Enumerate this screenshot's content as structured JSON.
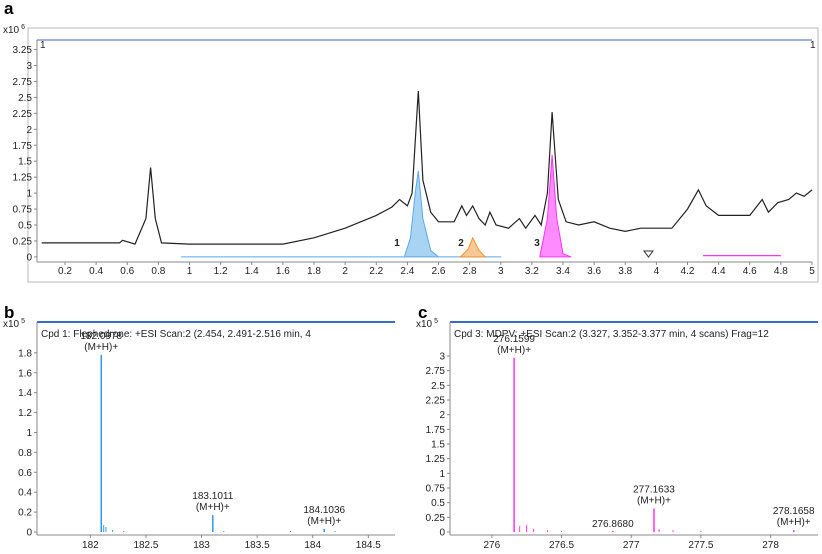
{
  "chart_data": [
    {
      "type": "chromatogram",
      "panel_label": "a",
      "scale_base": "x10",
      "scale_exponent": 6,
      "range_markers": [
        "1",
        "1"
      ],
      "peak_labels": [
        "1",
        "2",
        "3"
      ],
      "xlim": [
        0.02,
        5
      ],
      "ylim": [
        -0.08,
        3.4
      ],
      "xticks": [
        0.2,
        0.4,
        0.6,
        0.8,
        1,
        1.2,
        1.4,
        1.6,
        1.8,
        2,
        2.2,
        2.4,
        2.6,
        2.8,
        3,
        3.2,
        3.4,
        3.6,
        3.8,
        4,
        4.2,
        4.4,
        4.6,
        4.8,
        5
      ],
      "yticks": [
        0,
        0.25,
        0.5,
        0.75,
        1,
        1.25,
        1.5,
        1.75,
        2,
        2.25,
        2.5,
        2.75,
        3,
        3.25
      ],
      "series": [
        {
          "kind": "area",
          "color": "#5aaae6",
          "fill": "#a9d3f2",
          "x": [
            0.95,
            2.38,
            2.42,
            2.45,
            2.47,
            2.5,
            2.55,
            2.6,
            3.0
          ],
          "values": [
            0,
            0,
            0.3,
            1.0,
            1.35,
            0.6,
            0.1,
            0,
            0
          ]
        },
        {
          "kind": "area",
          "color": "#f0962e",
          "fill": "#f8c994",
          "x": [
            2.74,
            2.79,
            2.82,
            2.86,
            2.9
          ],
          "values": [
            0,
            0.12,
            0.3,
            0.1,
            0
          ]
        },
        {
          "kind": "area",
          "color": "#ff33ff",
          "fill": "#ff8cff",
          "x": [
            3.25,
            3.3,
            3.33,
            3.36,
            3.4,
            3.45
          ],
          "values": [
            0,
            0.6,
            1.6,
            0.6,
            0.05,
            0
          ]
        },
        {
          "kind": "line",
          "color": "#ff33ff",
          "x": [
            4.3,
            4.8
          ],
          "values": [
            0.02,
            0.02
          ]
        },
        {
          "kind": "line",
          "color": "#222222",
          "x": [
            0.05,
            0.3,
            0.55,
            0.57,
            0.65,
            0.72,
            0.75,
            0.78,
            0.82,
            1.0,
            1.3,
            1.6,
            1.8,
            2.0,
            2.2,
            2.3,
            2.35,
            2.4,
            2.43,
            2.47,
            2.5,
            2.55,
            2.6,
            2.7,
            2.75,
            2.78,
            2.82,
            2.86,
            2.9,
            2.93,
            2.97,
            3.05,
            3.12,
            3.16,
            3.22,
            3.26,
            3.3,
            3.33,
            3.37,
            3.42,
            3.5,
            3.6,
            3.7,
            3.8,
            3.9,
            4.0,
            4.1,
            4.2,
            4.27,
            4.32,
            4.4,
            4.5,
            4.6,
            4.68,
            4.72,
            4.78,
            4.85,
            4.9,
            4.95,
            5.0
          ],
          "values": [
            0.22,
            0.22,
            0.22,
            0.26,
            0.2,
            0.6,
            1.4,
            0.6,
            0.22,
            0.2,
            0.2,
            0.2,
            0.3,
            0.45,
            0.65,
            0.78,
            0.9,
            0.8,
            1.0,
            2.6,
            1.2,
            0.7,
            0.55,
            0.55,
            0.8,
            0.65,
            0.8,
            0.6,
            0.5,
            0.7,
            0.5,
            0.45,
            0.6,
            0.45,
            0.65,
            0.5,
            1.0,
            2.27,
            0.9,
            0.55,
            0.5,
            0.55,
            0.45,
            0.4,
            0.45,
            0.45,
            0.45,
            0.75,
            1.05,
            0.8,
            0.65,
            0.65,
            0.65,
            0.9,
            0.7,
            0.85,
            0.9,
            1.0,
            0.95,
            1.05
          ]
        }
      ]
    },
    {
      "type": "stem",
      "panel_label": "b",
      "scale_base": "x10",
      "scale_exponent": 5,
      "title": "Cpd 1: Flephedrone: +ESI Scan:2 (2.454, 2.491-2.516 min, 4",
      "xlim": [
        181.52,
        184.74
      ],
      "ylim": [
        0,
        2.11
      ],
      "xticks": [
        182,
        182.5,
        183,
        183.5,
        184,
        184.5
      ],
      "yticks": [
        0,
        0.2,
        0.4,
        0.6,
        0.8,
        1,
        1.2,
        1.4,
        1.6,
        1.8
      ],
      "series": [
        {
          "color": "#3399ee",
          "x": [
            182.0978,
            183.1011,
            184.1036
          ],
          "values": [
            1.78,
            0.17,
            0.03
          ],
          "x_labels": [
            "182.0978",
            "183.1011",
            "184.1036"
          ],
          "ion_labels": [
            "(M+H)+",
            "(M+H)+",
            "(M+H)+"
          ]
        },
        {
          "color": "#3399ee",
          "x": [
            182.12,
            182.14,
            182.2,
            182.3,
            183.2,
            183.8,
            184.2
          ],
          "values": [
            0.07,
            0.05,
            0.02,
            0.01,
            0.01,
            0.01,
            0.01
          ]
        }
      ]
    },
    {
      "type": "stem",
      "panel_label": "c",
      "scale_base": "x10",
      "scale_exponent": 5,
      "title": "Cpd 3: MDPV: +ESI Scan:2 (3.327, 3.352-3.377 min, 4 scans) Frag=12",
      "xlim": [
        275.7,
        278.34
      ],
      "ylim": [
        0,
        3.58
      ],
      "xticks": [
        276,
        276.5,
        277,
        277.5,
        278
      ],
      "yticks": [
        0,
        0.25,
        0.5,
        0.75,
        1,
        1.25,
        1.5,
        1.75,
        2,
        2.25,
        2.5,
        2.75,
        3
      ],
      "series": [
        {
          "color": "#ff33ff",
          "x": [
            276.1599,
            276.868,
            277.1633,
            278.1658
          ],
          "values": [
            2.97,
            0.02,
            0.4,
            0.03
          ],
          "x_labels": [
            "276.1599",
            "276.8680",
            "277.1633",
            "278.1658"
          ],
          "ion_labels": [
            "(M+H)+",
            null,
            "(M+H)+",
            "(M+H)+"
          ]
        },
        {
          "color": "#ff33ff",
          "x": [
            276.2,
            276.25,
            276.3,
            276.4,
            276.5,
            277.2,
            277.3,
            277.5
          ],
          "values": [
            0.1,
            0.12,
            0.05,
            0.03,
            0.02,
            0.05,
            0.03,
            0.02
          ]
        }
      ]
    }
  ]
}
